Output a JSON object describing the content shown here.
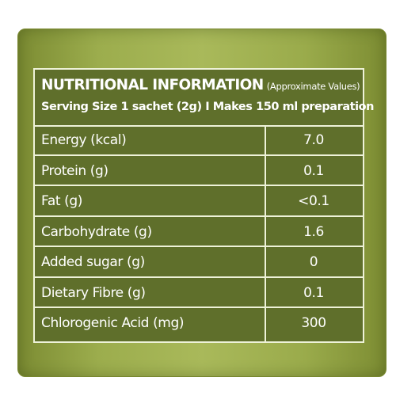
{
  "nutrition_panel": {
    "title": "NUTRITIONAL INFORMATION",
    "title_note": "(Approximate Values)",
    "serving_info": "Serving Size 1 sachet (2g) I Makes 150 ml preparation",
    "rows": [
      {
        "label": "Energy (kcal)",
        "value": "7.0"
      },
      {
        "label": "Protein (g)",
        "value": "0.1"
      },
      {
        "label": "Fat (g)",
        "value": "<0.1"
      },
      {
        "label": "Carbohydrate (g)",
        "value": "1.6"
      },
      {
        "label": "Added sugar (g)",
        "value": "0"
      },
      {
        "label": "Dietary Fibre (g)",
        "value": "0.1"
      },
      {
        "label": "Chlorogenic Acid (mg)",
        "value": "300"
      }
    ]
  },
  "colors": {
    "background_green": "#9cad4d",
    "table_green": "#5f6f2b",
    "border": "#eef2d8",
    "text": "#ffffff"
  }
}
